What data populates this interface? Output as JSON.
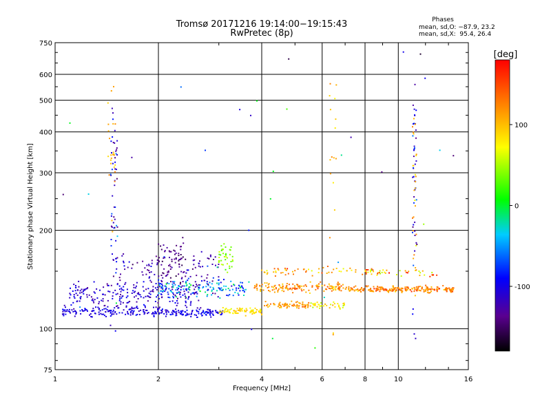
{
  "chart_data": {
    "type": "scatter",
    "title": "Tromsø 20171216 19:14:00−19:15:43",
    "subtitle": "RwPretec (8p)",
    "xlabel": "Frequency [MHz]",
    "ylabel": "Stationary phase Virtual Height [km]",
    "x_scale": "log",
    "y_scale": "log",
    "xlim": [
      1,
      16
    ],
    "ylim": [
      75,
      750
    ],
    "x_ticks": [
      1,
      2,
      4,
      6,
      8,
      10,
      16
    ],
    "y_ticks": [
      75,
      100,
      200,
      300,
      400,
      500,
      600,
      750
    ],
    "grid": true,
    "colorbar": {
      "label": "[deg]",
      "range": [
        -180,
        180
      ],
      "ticks": [
        100,
        0,
        -100
      ]
    },
    "stats": {
      "header": "Phases",
      "line_o": "mean, sd,O: −87.9, 23.2",
      "line_x": "mean, sd,X:  95.4, 26.4"
    },
    "clusters": [
      {
        "fmin": 1.05,
        "fmax": 2.1,
        "h": 113,
        "hs": 3,
        "p": -105,
        "ps": 12,
        "n": 160
      },
      {
        "fmin": 2.1,
        "fmax": 3.1,
        "h": 112,
        "hs": 2,
        "p": -100,
        "ps": 14,
        "n": 110
      },
      {
        "fmin": 3.0,
        "fmax": 4.0,
        "h": 113,
        "hs": 2,
        "p": 85,
        "ps": 15,
        "n": 80
      },
      {
        "fmin": 4.0,
        "fmax": 5.5,
        "h": 118,
        "hs": 2,
        "p": 115,
        "ps": 20,
        "n": 70
      },
      {
        "fmin": 5.5,
        "fmax": 7.0,
        "h": 118,
        "hs": 2,
        "p": 80,
        "ps": 25,
        "n": 40
      },
      {
        "fmin": 1.1,
        "fmax": 2.6,
        "h": 128,
        "hs": 8,
        "p": -110,
        "ps": 20,
        "n": 220
      },
      {
        "fmin": 2.0,
        "fmax": 3.6,
        "h": 133,
        "hs": 6,
        "p": -50,
        "ps": 45,
        "n": 140
      },
      {
        "fmin": 3.8,
        "fmax": 7.0,
        "h": 134,
        "hs": 3,
        "p": 120,
        "ps": 25,
        "n": 140
      },
      {
        "fmin": 7.0,
        "fmax": 14.5,
        "h": 132,
        "hs": 2,
        "p": 125,
        "ps": 25,
        "n": 220
      },
      {
        "fmin": 4.0,
        "fmax": 8.5,
        "h": 150,
        "hs": 3,
        "p": 115,
        "ps": 40,
        "n": 60
      },
      {
        "fmin": 8.0,
        "fmax": 13.0,
        "h": 148,
        "hs": 3,
        "p": 110,
        "ps": 60,
        "n": 40
      },
      {
        "fmin": 1.5,
        "fmax": 2.0,
        "h": 150,
        "hs": 15,
        "p": -120,
        "ps": 20,
        "n": 50
      },
      {
        "fmin": 2.0,
        "fmax": 2.4,
        "h": 160,
        "hs": 18,
        "p": -140,
        "ps": 15,
        "n": 80
      },
      {
        "fmin": 2.4,
        "fmax": 3.0,
        "h": 150,
        "hs": 20,
        "p": -120,
        "ps": 20,
        "n": 50
      },
      {
        "fmin": 3.0,
        "fmax": 3.3,
        "h": 165,
        "hs": 10,
        "p": 40,
        "ps": 20,
        "n": 40
      },
      {
        "fmin": 1.45,
        "fmax": 1.52,
        "h": 280,
        "hs": 150,
        "p": -110,
        "ps": 30,
        "n": 55
      },
      {
        "fmin": 1.42,
        "fmax": 1.5,
        "h": 300,
        "hs": 200,
        "p": 110,
        "ps": 20,
        "n": 25
      },
      {
        "fmin": 11.0,
        "fmax": 11.3,
        "h": 300,
        "hs": 180,
        "p": -100,
        "ps": 30,
        "n": 45
      },
      {
        "fmin": 11.0,
        "fmax": 11.3,
        "h": 280,
        "hs": 150,
        "p": 110,
        "ps": 30,
        "n": 25
      },
      {
        "fmin": 6.3,
        "fmax": 6.6,
        "h": 300,
        "hs": 250,
        "p": 100,
        "ps": 20,
        "n": 20
      },
      {
        "fmin": 1.0,
        "fmax": 15.0,
        "h": 200,
        "hs": 400,
        "p": -80,
        "ps": 100,
        "n": 60
      }
    ]
  }
}
